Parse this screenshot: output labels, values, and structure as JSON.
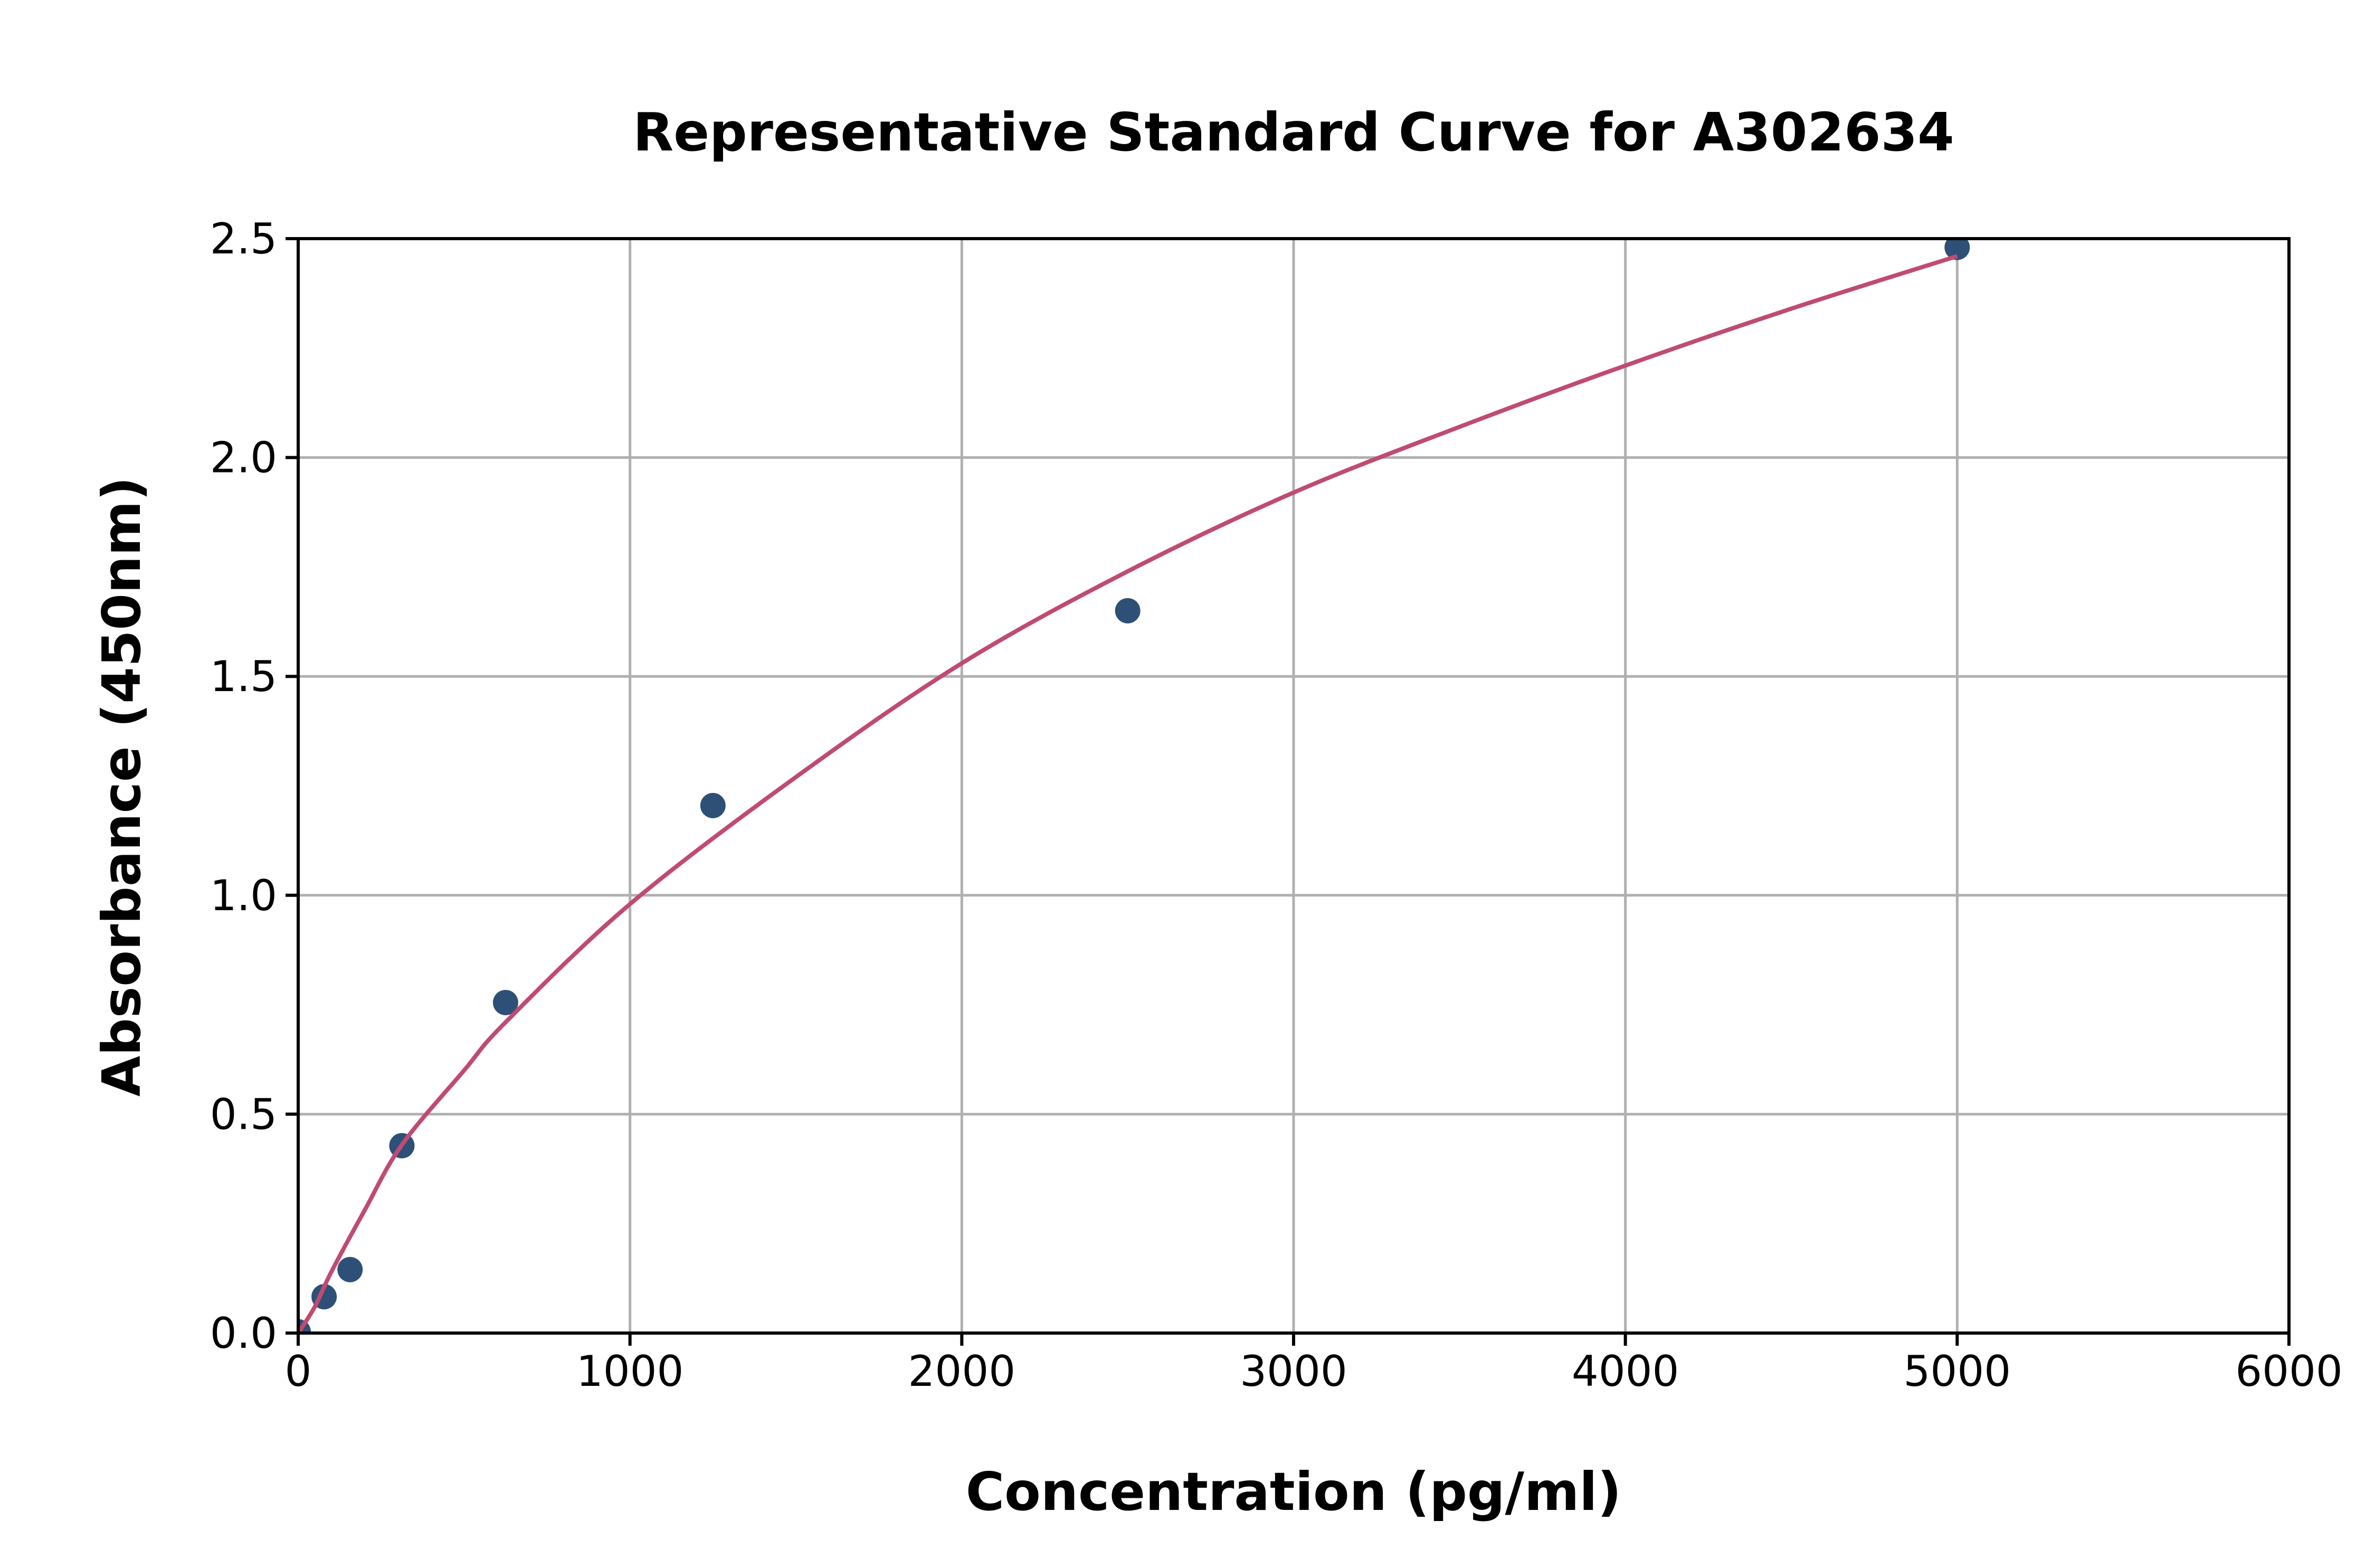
{
  "chart_data": {
    "type": "scatter",
    "title": "Representative Standard Curve for A302634",
    "xlabel": "Concentration (pg/ml)",
    "ylabel": "Absorbance (450nm)",
    "xlim": [
      0,
      6000
    ],
    "ylim": [
      0,
      2.5
    ],
    "xticks": [
      "0",
      "1000",
      "2000",
      "3000",
      "4000",
      "5000",
      "6000"
    ],
    "yticks": [
      "0.0",
      "0.5",
      "1.0",
      "1.5",
      "2.0",
      "2.5"
    ],
    "grid": true,
    "points": {
      "x": [
        0,
        78.125,
        156.25,
        312.5,
        625,
        1250,
        2500,
        5000
      ],
      "y": [
        0.003,
        0.083,
        0.145,
        0.428,
        0.755,
        1.205,
        1.65,
        2.48
      ],
      "color": "#2e5077"
    },
    "fit_curve": {
      "x": [
        0,
        50,
        100,
        200,
        312.5,
        500,
        625,
        1000,
        1500,
        2000,
        2500,
        3000,
        3500,
        4000,
        4500,
        5000
      ],
      "y": [
        0,
        0.06,
        0.14,
        0.28,
        0.43,
        0.6,
        0.71,
        0.98,
        1.27,
        1.53,
        1.74,
        1.92,
        2.07,
        2.21,
        2.34,
        2.46
      ],
      "color": "#c04b72"
    }
  }
}
